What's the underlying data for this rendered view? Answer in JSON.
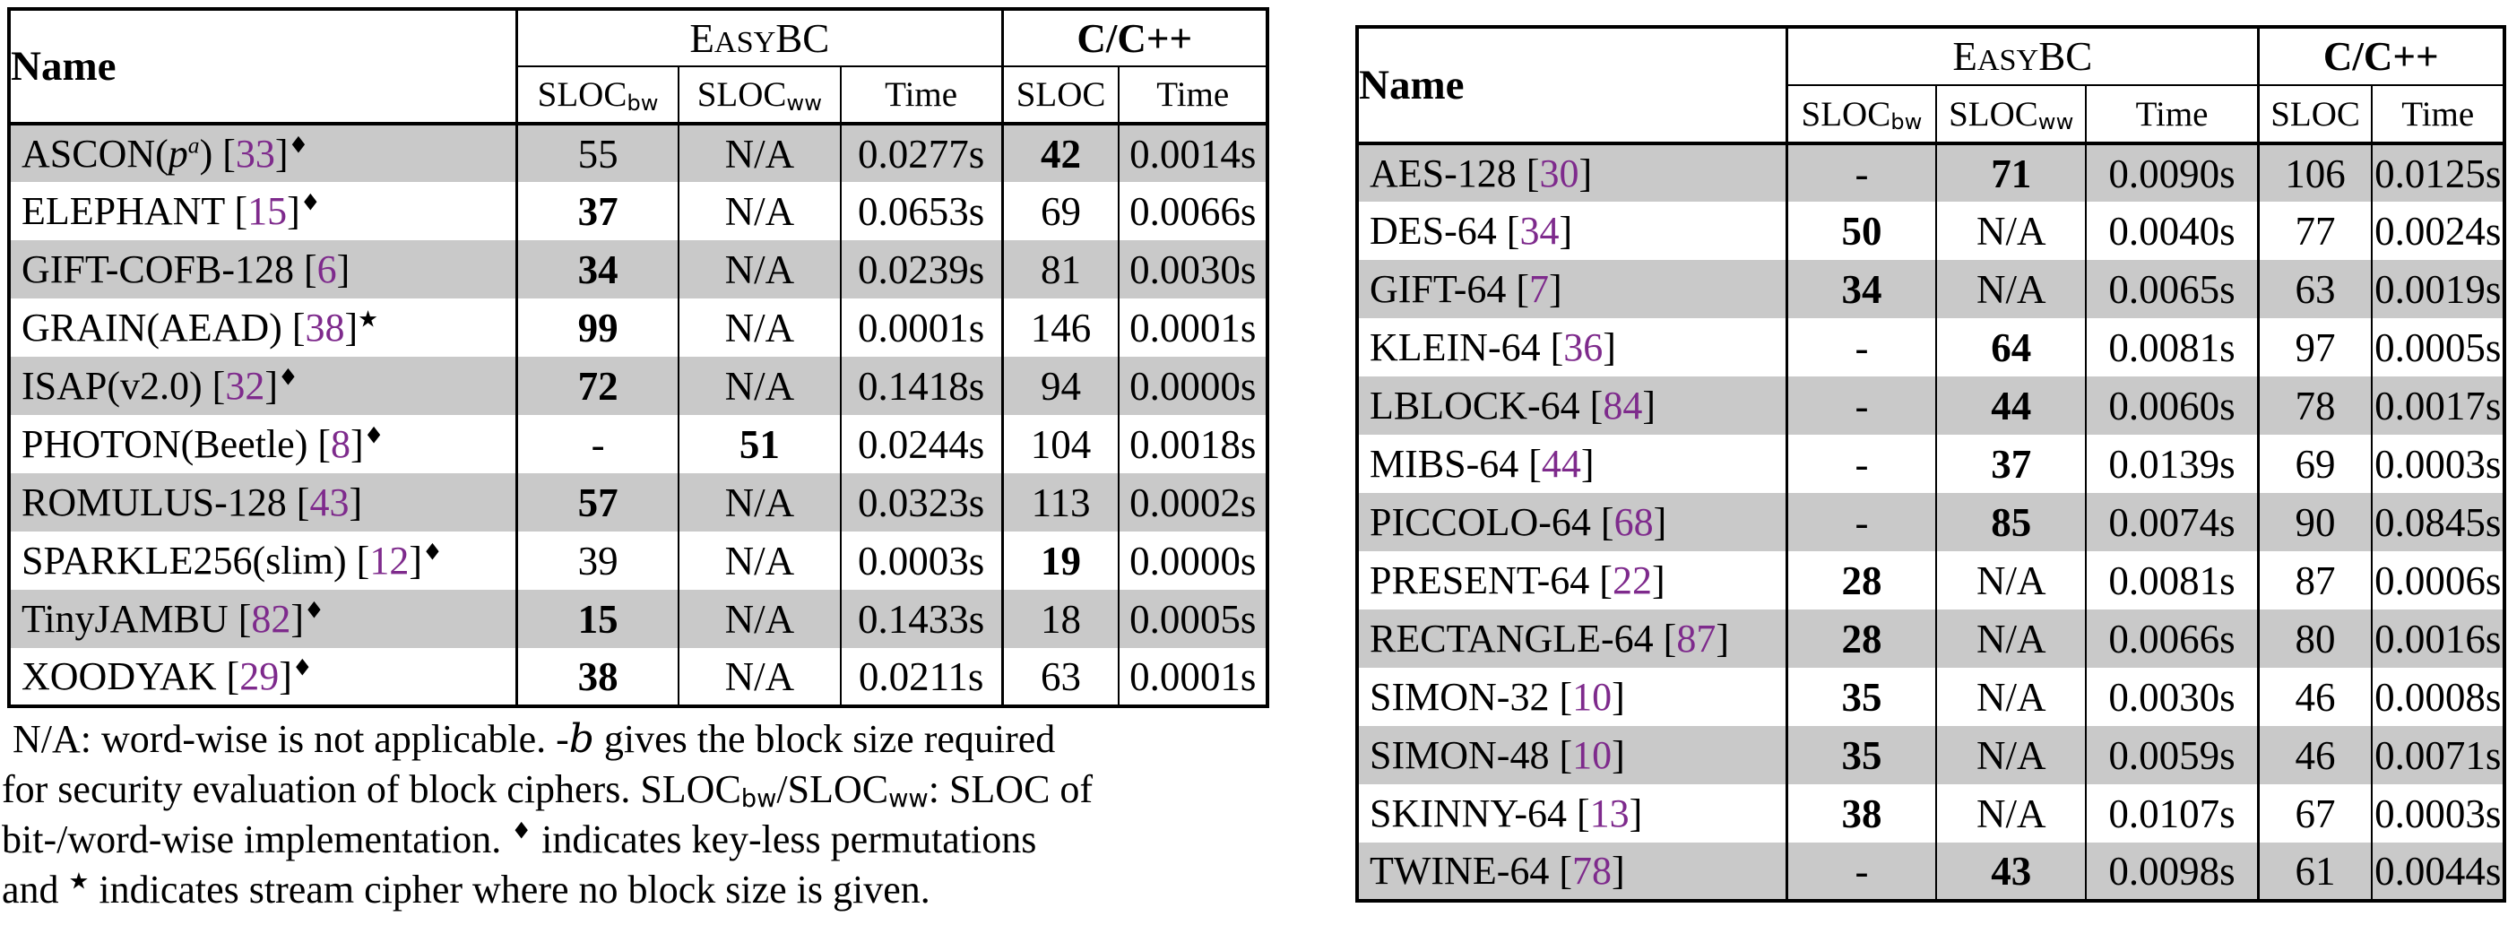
{
  "colors": {
    "row_shade": "#c9c9c9",
    "citation_purple": "#7e2a8c",
    "border_black": "#000000"
  },
  "header": {
    "name_label": "Name",
    "easybc_parts": [
      {
        "t": "E"
      },
      {
        "t": "ASY",
        "sc": true
      },
      {
        "t": "BC"
      }
    ],
    "cpp_label": "C/C++",
    "sub_slocbw": [
      {
        "t": "SLOC"
      },
      {
        "t": "bw",
        "sub": true
      }
    ],
    "sub_slocww": [
      {
        "t": "SLOC"
      },
      {
        "t": "ww",
        "sub": true
      }
    ],
    "sub_time": "Time",
    "sub_sloc": "SLOC"
  },
  "left_table": {
    "rows": [
      {
        "name_parts": [
          {
            "t": "ASCON("
          },
          {
            "t": "p",
            "i": true
          },
          {
            "t": "a",
            "i": true,
            "sup": true
          },
          {
            "t": ") ["
          },
          {
            "t": "33",
            "cite": true
          },
          {
            "t": "]"
          },
          {
            "t": "♦",
            "sup": true,
            "sym": true
          }
        ],
        "cells": [
          "55",
          "N/A",
          "0.0277s",
          "42",
          "0.0014s"
        ],
        "bold": [
          false,
          false,
          false,
          true,
          false
        ]
      },
      {
        "name_parts": [
          {
            "t": "ELEPHANT ["
          },
          {
            "t": "15",
            "cite": true
          },
          {
            "t": "]"
          },
          {
            "t": "♦",
            "sup": true,
            "sym": true
          }
        ],
        "cells": [
          "37",
          "N/A",
          "0.0653s",
          "69",
          "0.0066s"
        ],
        "bold": [
          true,
          false,
          false,
          false,
          false
        ]
      },
      {
        "name_parts": [
          {
            "t": "GIFT-COFB-128 ["
          },
          {
            "t": "6",
            "cite": true
          },
          {
            "t": "]"
          }
        ],
        "cells": [
          "34",
          "N/A",
          "0.0239s",
          "81",
          "0.0030s"
        ],
        "bold": [
          true,
          false,
          false,
          false,
          false
        ]
      },
      {
        "name_parts": [
          {
            "t": "GRAIN(AEAD) ["
          },
          {
            "t": "38",
            "cite": true
          },
          {
            "t": "]"
          },
          {
            "t": "★",
            "sup": true,
            "sym": true
          }
        ],
        "cells": [
          "99",
          "N/A",
          "0.0001s",
          "146",
          "0.0001s"
        ],
        "bold": [
          true,
          false,
          false,
          false,
          false
        ]
      },
      {
        "name_parts": [
          {
            "t": "ISAP(v2.0) ["
          },
          {
            "t": "32",
            "cite": true
          },
          {
            "t": "]"
          },
          {
            "t": "♦",
            "sup": true,
            "sym": true
          }
        ],
        "cells": [
          "72",
          "N/A",
          "0.1418s",
          "94",
          "0.0000s"
        ],
        "bold": [
          true,
          false,
          false,
          false,
          false
        ]
      },
      {
        "name_parts": [
          {
            "t": "PHOTON(Beetle) ["
          },
          {
            "t": "8",
            "cite": true
          },
          {
            "t": "]"
          },
          {
            "t": "♦",
            "sup": true,
            "sym": true
          }
        ],
        "cells": [
          "-",
          "51",
          "0.0244s",
          "104",
          "0.0018s"
        ],
        "bold": [
          false,
          true,
          false,
          false,
          false
        ]
      },
      {
        "name_parts": [
          {
            "t": "ROMULUS-128 ["
          },
          {
            "t": "43",
            "cite": true
          },
          {
            "t": "]"
          }
        ],
        "cells": [
          "57",
          "N/A",
          "0.0323s",
          "113",
          "0.0002s"
        ],
        "bold": [
          true,
          false,
          false,
          false,
          false
        ]
      },
      {
        "name_parts": [
          {
            "t": "SPARKLE256(slim) ["
          },
          {
            "t": "12",
            "cite": true
          },
          {
            "t": "]"
          },
          {
            "t": "♦",
            "sup": true,
            "sym": true
          }
        ],
        "cells": [
          "39",
          "N/A",
          "0.0003s",
          "19",
          "0.0000s"
        ],
        "bold": [
          false,
          false,
          false,
          true,
          false
        ]
      },
      {
        "name_parts": [
          {
            "t": "TinyJAMBU ["
          },
          {
            "t": "82",
            "cite": true
          },
          {
            "t": "]"
          },
          {
            "t": "♦",
            "sup": true,
            "sym": true
          }
        ],
        "cells": [
          "15",
          "N/A",
          "0.1433s",
          "18",
          "0.0005s"
        ],
        "bold": [
          true,
          false,
          false,
          false,
          false
        ]
      },
      {
        "name_parts": [
          {
            "t": "XOODYAK ["
          },
          {
            "t": "29",
            "cite": true
          },
          {
            "t": "]"
          },
          {
            "t": "♦",
            "sup": true,
            "sym": true
          }
        ],
        "cells": [
          "38",
          "N/A",
          "0.0211s",
          "63",
          "0.0001s"
        ],
        "bold": [
          true,
          false,
          false,
          false,
          false
        ]
      }
    ]
  },
  "right_table": {
    "rows": [
      {
        "name_parts": [
          {
            "t": "AES-128 ["
          },
          {
            "t": "30",
            "cite": true
          },
          {
            "t": "]"
          }
        ],
        "cells": [
          "-",
          "71",
          "0.0090s",
          "106",
          "0.0125s"
        ],
        "bold": [
          false,
          true,
          false,
          false,
          false
        ]
      },
      {
        "name_parts": [
          {
            "t": "DES-64 ["
          },
          {
            "t": "34",
            "cite": true
          },
          {
            "t": "]"
          }
        ],
        "cells": [
          "50",
          "N/A",
          "0.0040s",
          "77",
          "0.0024s"
        ],
        "bold": [
          true,
          false,
          false,
          false,
          false
        ]
      },
      {
        "name_parts": [
          {
            "t": "GIFT-64 ["
          },
          {
            "t": "7",
            "cite": true
          },
          {
            "t": "]"
          }
        ],
        "cells": [
          "34",
          "N/A",
          "0.0065s",
          "63",
          "0.0019s"
        ],
        "bold": [
          true,
          false,
          false,
          false,
          false
        ]
      },
      {
        "name_parts": [
          {
            "t": "KLEIN-64 ["
          },
          {
            "t": "36",
            "cite": true
          },
          {
            "t": "]"
          }
        ],
        "cells": [
          "-",
          "64",
          "0.0081s",
          "97",
          "0.0005s"
        ],
        "bold": [
          false,
          true,
          false,
          false,
          false
        ]
      },
      {
        "name_parts": [
          {
            "t": "LBLOCK-64 ["
          },
          {
            "t": "84",
            "cite": true
          },
          {
            "t": "]"
          }
        ],
        "cells": [
          "-",
          "44",
          "0.0060s",
          "78",
          "0.0017s"
        ],
        "bold": [
          false,
          true,
          false,
          false,
          false
        ]
      },
      {
        "name_parts": [
          {
            "t": "MIBS-64 ["
          },
          {
            "t": "44",
            "cite": true
          },
          {
            "t": "]"
          }
        ],
        "cells": [
          "-",
          "37",
          "0.0139s",
          "69",
          "0.0003s"
        ],
        "bold": [
          false,
          true,
          false,
          false,
          false
        ]
      },
      {
        "name_parts": [
          {
            "t": "PICCOLO-64 ["
          },
          {
            "t": "68",
            "cite": true
          },
          {
            "t": "]"
          }
        ],
        "cells": [
          "-",
          "85",
          "0.0074s",
          "90",
          "0.0845s"
        ],
        "bold": [
          false,
          true,
          false,
          false,
          false
        ]
      },
      {
        "name_parts": [
          {
            "t": "PRESENT-64 ["
          },
          {
            "t": "22",
            "cite": true
          },
          {
            "t": "]"
          }
        ],
        "cells": [
          "28",
          "N/A",
          "0.0081s",
          "87",
          "0.0006s"
        ],
        "bold": [
          true,
          false,
          false,
          false,
          false
        ]
      },
      {
        "name_parts": [
          {
            "t": "RECTANGLE-64 ["
          },
          {
            "t": "87",
            "cite": true
          },
          {
            "t": "]"
          }
        ],
        "cells": [
          "28",
          "N/A",
          "0.0066s",
          "80",
          "0.0016s"
        ],
        "bold": [
          true,
          false,
          false,
          false,
          false
        ]
      },
      {
        "name_parts": [
          {
            "t": "SIMON-32 ["
          },
          {
            "t": "10",
            "cite": true
          },
          {
            "t": "]"
          }
        ],
        "cells": [
          "35",
          "N/A",
          "0.0030s",
          "46",
          "0.0008s"
        ],
        "bold": [
          true,
          false,
          false,
          false,
          false
        ]
      },
      {
        "name_parts": [
          {
            "t": "SIMON-48 ["
          },
          {
            "t": "10",
            "cite": true
          },
          {
            "t": "]"
          }
        ],
        "cells": [
          "35",
          "N/A",
          "0.0059s",
          "46",
          "0.0071s"
        ],
        "bold": [
          true,
          false,
          false,
          false,
          false
        ]
      },
      {
        "name_parts": [
          {
            "t": "SKINNY-64 ["
          },
          {
            "t": "13",
            "cite": true
          },
          {
            "t": "]"
          }
        ],
        "cells": [
          "38",
          "N/A",
          "0.0107s",
          "67",
          "0.0003s"
        ],
        "bold": [
          true,
          false,
          false,
          false,
          false
        ]
      },
      {
        "name_parts": [
          {
            "t": "TWINE-64 ["
          },
          {
            "t": "78",
            "cite": true
          },
          {
            "t": "]"
          }
        ],
        "cells": [
          "-",
          "43",
          "0.0098s",
          "61",
          "0.0044s"
        ],
        "bold": [
          false,
          true,
          false,
          false,
          false
        ]
      }
    ]
  },
  "footnote": {
    "lines": [
      [
        {
          "t": "N/A: word-wise is not applicable. -"
        },
        {
          "t": "b",
          "script": true
        },
        {
          "t": " gives the block size required"
        }
      ],
      [
        {
          "t": "for security evaluation of block ciphers. SLOC"
        },
        {
          "t": "bw",
          "sub": true
        },
        {
          "t": "/SLOC"
        },
        {
          "t": "ww",
          "sub": true
        },
        {
          "t": ": SLOC of"
        }
      ],
      [
        {
          "t": "bit-/word-wise implementation. "
        },
        {
          "t": "♦",
          "sup": true,
          "sym": true
        },
        {
          "t": " indicates key-less permutations"
        }
      ],
      [
        {
          "t": "and "
        },
        {
          "t": "★",
          "sup": true,
          "sym": true
        },
        {
          "t": " indicates stream cipher where no block size is given."
        }
      ]
    ]
  }
}
